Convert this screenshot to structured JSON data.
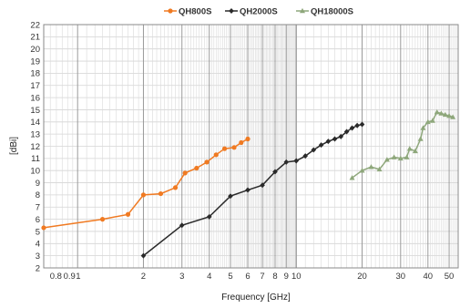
{
  "chart_data": {
    "type": "line",
    "xlabel": "Frequency [GHz]",
    "ylabel": "[dBi]",
    "x_scale": "log",
    "xlim": [
      0.7,
      55
    ],
    "ylim": [
      2,
      22
    ],
    "x_tick_labels": [
      "0.8",
      "0.9",
      "1",
      "2",
      "3",
      "4",
      "5",
      "6",
      "7",
      "8",
      "9",
      "10",
      "20",
      "30",
      "40",
      "50"
    ],
    "y_tick_labels": [
      "2",
      "3",
      "4",
      "5",
      "6",
      "7",
      "8",
      "9",
      "10",
      "11",
      "12",
      "13",
      "14",
      "15",
      "16",
      "17",
      "18",
      "19",
      "20",
      "21",
      "22"
    ],
    "grid": true,
    "legend_position": "top-center",
    "series": [
      {
        "name": "QH800S",
        "color": "#f07a22",
        "marker": "circle",
        "x": [
          0.7,
          1.3,
          1.7,
          2.0,
          2.4,
          2.8,
          3.1,
          3.5,
          3.9,
          4.3,
          4.7,
          5.2,
          5.6,
          6.0
        ],
        "y": [
          5.3,
          6.0,
          6.4,
          8.0,
          8.1,
          8.6,
          9.8,
          10.2,
          10.7,
          11.3,
          11.8,
          11.9,
          12.3,
          12.6
        ]
      },
      {
        "name": "QH2000S",
        "color": "#2a2a2a",
        "marker": "diamond",
        "x": [
          2.0,
          3.0,
          4.0,
          5.0,
          6.0,
          7.0,
          8.0,
          9.0,
          10.0,
          11.0,
          12.0,
          13.0,
          14.0,
          15.0,
          16.0,
          17.0,
          18.0,
          19.0,
          20.0
        ],
        "y": [
          3.0,
          5.5,
          6.2,
          7.9,
          8.4,
          8.8,
          9.9,
          10.7,
          10.8,
          11.2,
          11.7,
          12.1,
          12.4,
          12.6,
          12.8,
          13.2,
          13.5,
          13.7,
          13.8
        ]
      },
      {
        "name": "QH18000S",
        "color": "#8ea77b",
        "marker": "triangle",
        "x": [
          18,
          20,
          22,
          24,
          26,
          28,
          30,
          32,
          33,
          35,
          37,
          38,
          40,
          42,
          44,
          46,
          48,
          50,
          52
        ],
        "y": [
          9.4,
          10.0,
          10.3,
          10.1,
          10.9,
          11.1,
          11.0,
          11.1,
          11.8,
          11.6,
          12.6,
          13.5,
          14.0,
          14.1,
          14.8,
          14.7,
          14.6,
          14.5,
          14.4
        ]
      }
    ]
  }
}
